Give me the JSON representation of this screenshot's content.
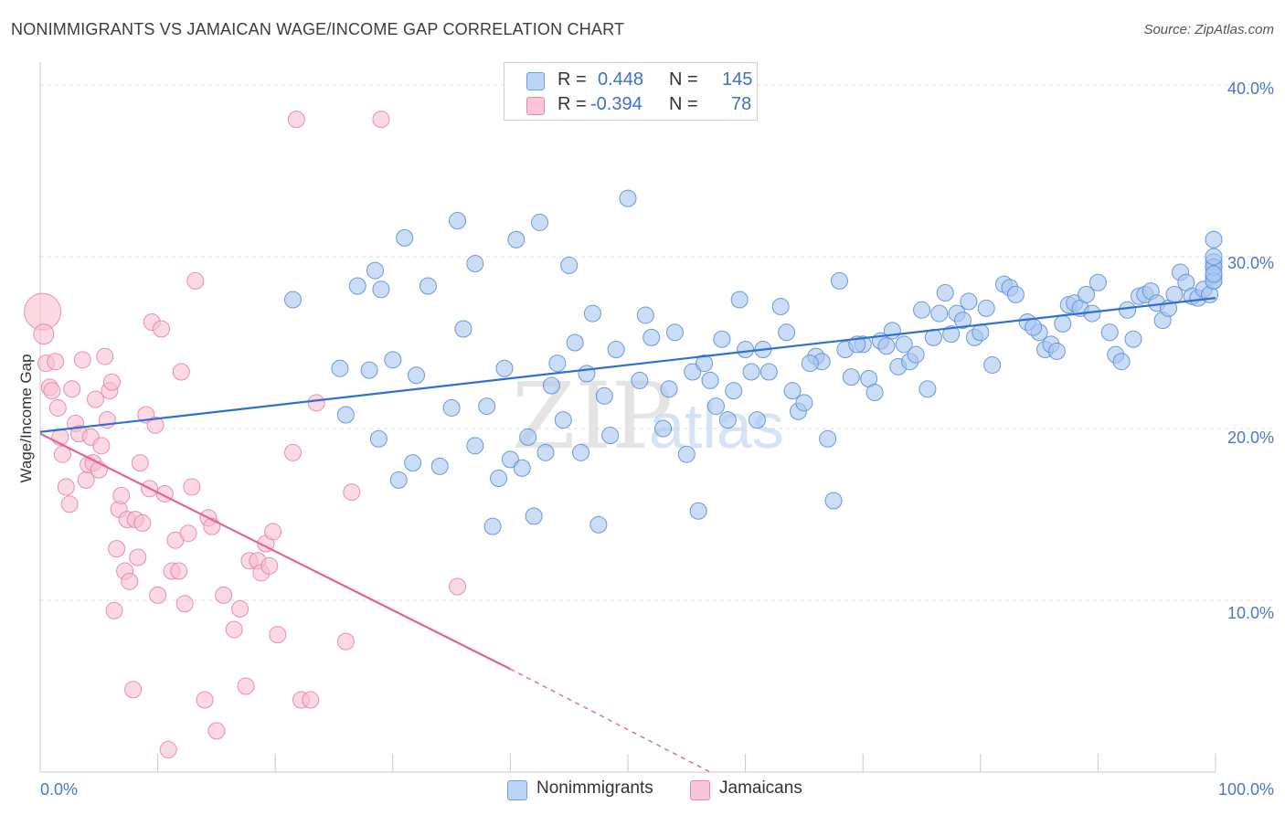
{
  "title": "NONIMMIGRANTS VS JAMAICAN WAGE/INCOME GAP CORRELATION CHART",
  "source": "Source: ZipAtlas.com",
  "watermark": {
    "zip": "ZIP",
    "atlas": "atlas"
  },
  "legend": {
    "r_label": "R =",
    "n_label": "N =",
    "rows": [
      {
        "series": "Nonimmigrants",
        "r": "0.448",
        "n": "145",
        "fill": "#bcd4f5",
        "stroke": "#6e9ee0"
      },
      {
        "series": "Jamaicans",
        "r": "-0.394",
        "n": "78",
        "fill": "#f9c6d6",
        "stroke": "#e98aa9"
      }
    ]
  },
  "colors": {
    "blue_fill": "#a9c6ef",
    "blue_stroke": "#5c8fd8",
    "blue_line": "#2f6fd0",
    "pink_fill": "#f6bfd0",
    "pink_stroke": "#e684a5",
    "pink_line": "#e2648f",
    "axis_text": "#4a78c8",
    "grid": "#dddddd"
  },
  "chart_data": {
    "type": "scatter",
    "title": "NONIMMIGRANTS VS JAMAICAN WAGE/INCOME GAP CORRELATION CHART",
    "xlabel": "",
    "ylabel": "Wage/Income Gap",
    "x_tick_labels": [
      "0.0%",
      "100.0%"
    ],
    "y_tick_labels": [
      "10.0%",
      "20.0%",
      "30.0%",
      "40.0%"
    ],
    "xlim": [
      0,
      100
    ],
    "ylim": [
      0,
      40.8
    ],
    "grid": true,
    "legend_position": "top-center",
    "series": [
      {
        "name": "Nonimmigrants",
        "r": 0.448,
        "n": 145,
        "trend": {
          "x": [
            0,
            100
          ],
          "y": [
            19.8,
            27.6
          ]
        },
        "points": [
          [
            21.5,
            27.5
          ],
          [
            25.5,
            23.5
          ],
          [
            26.0,
            20.8
          ],
          [
            27.0,
            28.3
          ],
          [
            28.0,
            23.4
          ],
          [
            28.5,
            29.2
          ],
          [
            29.0,
            28.1
          ],
          [
            30.0,
            24.0
          ],
          [
            31.0,
            31.1
          ],
          [
            32.0,
            23.1
          ],
          [
            28.8,
            19.4
          ],
          [
            30.5,
            17.0
          ],
          [
            31.7,
            18.0
          ],
          [
            33.0,
            28.3
          ],
          [
            34.0,
            17.8
          ],
          [
            35.0,
            21.2
          ],
          [
            35.5,
            32.1
          ],
          [
            36.0,
            25.8
          ],
          [
            37.0,
            29.6
          ],
          [
            38.0,
            21.3
          ],
          [
            38.5,
            14.3
          ],
          [
            39.0,
            17.1
          ],
          [
            39.5,
            23.5
          ],
          [
            40.0,
            18.2
          ],
          [
            40.5,
            31.0
          ],
          [
            41.0,
            17.7
          ],
          [
            41.5,
            19.5
          ],
          [
            42.0,
            14.9
          ],
          [
            42.5,
            32.0
          ],
          [
            43.5,
            22.5
          ],
          [
            44.0,
            23.8
          ],
          [
            44.5,
            20.5
          ],
          [
            45.0,
            29.5
          ],
          [
            45.5,
            25.0
          ],
          [
            46.0,
            18.6
          ],
          [
            46.5,
            23.2
          ],
          [
            47.0,
            26.7
          ],
          [
            47.5,
            14.4
          ],
          [
            48.0,
            21.9
          ],
          [
            48.5,
            19.6
          ],
          [
            49.0,
            24.6
          ],
          [
            50.0,
            33.4
          ],
          [
            51.0,
            22.8
          ],
          [
            51.5,
            26.6
          ],
          [
            52.0,
            25.3
          ],
          [
            53.5,
            22.3
          ],
          [
            54.0,
            25.6
          ],
          [
            55.0,
            18.5
          ],
          [
            55.5,
            23.3
          ],
          [
            56.0,
            15.2
          ],
          [
            56.5,
            23.8
          ],
          [
            57.0,
            22.8
          ],
          [
            57.5,
            21.3
          ],
          [
            58.0,
            25.2
          ],
          [
            58.5,
            20.5
          ],
          [
            59.5,
            27.5
          ],
          [
            60.0,
            24.6
          ],
          [
            60.5,
            23.3
          ],
          [
            61.0,
            20.5
          ],
          [
            61.5,
            24.6
          ],
          [
            62.0,
            23.3
          ],
          [
            63.0,
            27.1
          ],
          [
            63.5,
            25.6
          ],
          [
            64.0,
            22.2
          ],
          [
            64.5,
            21.0
          ],
          [
            65.0,
            21.5
          ],
          [
            66.0,
            24.2
          ],
          [
            66.5,
            23.9
          ],
          [
            67.0,
            19.4
          ],
          [
            67.5,
            15.8
          ],
          [
            68.0,
            28.6
          ],
          [
            68.5,
            24.6
          ],
          [
            69.0,
            23.0
          ],
          [
            70.0,
            24.9
          ],
          [
            70.5,
            22.9
          ],
          [
            71.0,
            22.1
          ],
          [
            71.5,
            25.1
          ],
          [
            72.0,
            24.8
          ],
          [
            72.5,
            25.7
          ],
          [
            73.0,
            23.6
          ],
          [
            73.5,
            24.9
          ],
          [
            74.0,
            23.9
          ],
          [
            74.5,
            24.3
          ],
          [
            75.0,
            26.9
          ],
          [
            75.5,
            22.3
          ],
          [
            76.0,
            25.3
          ],
          [
            77.0,
            27.9
          ],
          [
            77.5,
            25.5
          ],
          [
            78.0,
            26.7
          ],
          [
            78.5,
            26.3
          ],
          [
            79.0,
            27.4
          ],
          [
            79.5,
            25.3
          ],
          [
            80.0,
            25.6
          ],
          [
            81.0,
            23.7
          ],
          [
            82.0,
            28.4
          ],
          [
            82.5,
            28.2
          ],
          [
            83.0,
            27.8
          ],
          [
            84.0,
            26.2
          ],
          [
            85.0,
            25.6
          ],
          [
            85.5,
            24.6
          ],
          [
            86.0,
            24.9
          ],
          [
            86.5,
            24.5
          ],
          [
            87.0,
            26.1
          ],
          [
            87.5,
            27.2
          ],
          [
            88.0,
            27.3
          ],
          [
            88.5,
            27.0
          ],
          [
            89.0,
            27.8
          ],
          [
            89.5,
            26.7
          ],
          [
            90.0,
            28.5
          ],
          [
            91.0,
            25.6
          ],
          [
            91.5,
            24.3
          ],
          [
            92.0,
            23.9
          ],
          [
            92.5,
            26.9
          ],
          [
            93.0,
            25.2
          ],
          [
            93.5,
            27.7
          ],
          [
            94.0,
            27.8
          ],
          [
            94.5,
            28.0
          ],
          [
            95.0,
            27.3
          ],
          [
            95.5,
            26.3
          ],
          [
            96.0,
            27.0
          ],
          [
            96.5,
            27.8
          ],
          [
            97.0,
            29.1
          ],
          [
            97.5,
            28.5
          ],
          [
            98.0,
            27.7
          ],
          [
            98.5,
            27.6
          ],
          [
            99.0,
            28.1
          ],
          [
            99.5,
            27.8
          ],
          [
            100.0,
            28.9
          ],
          [
            100.5,
            29.4
          ],
          [
            101.0,
            28.6
          ],
          [
            101.5,
            29.7
          ],
          [
            102.0,
            28.6
          ],
          [
            102.5,
            29.4
          ],
          [
            103.0,
            30.0
          ],
          [
            103.5,
            29.0
          ],
          [
            104.0,
            31.0
          ],
          [
            37.0,
            19.0
          ],
          [
            43.0,
            18.6
          ],
          [
            53.0,
            20.0
          ],
          [
            59.0,
            22.2
          ],
          [
            65.5,
            23.8
          ],
          [
            69.5,
            24.9
          ],
          [
            76.5,
            26.7
          ],
          [
            80.5,
            27.0
          ],
          [
            84.5,
            25.9
          ]
        ]
      },
      {
        "name": "Jamaicans",
        "r": -0.394,
        "n": 78,
        "trend": {
          "x": [
            0,
            40
          ],
          "y": [
            19.7,
            6.0
          ]
        },
        "trend_dashed": {
          "x": [
            40,
            57
          ],
          "y": [
            6.0,
            0.0
          ]
        },
        "points": [
          [
            0.2,
            26.8
          ],
          [
            0.3,
            25.5
          ],
          [
            0.5,
            23.8
          ],
          [
            0.8,
            22.4
          ],
          [
            1.0,
            22.2
          ],
          [
            1.3,
            23.9
          ],
          [
            1.5,
            21.2
          ],
          [
            1.7,
            19.5
          ],
          [
            1.9,
            18.5
          ],
          [
            2.2,
            16.6
          ],
          [
            2.5,
            15.6
          ],
          [
            2.7,
            22.3
          ],
          [
            3.0,
            20.3
          ],
          [
            3.3,
            19.7
          ],
          [
            3.6,
            24.0
          ],
          [
            3.9,
            17.0
          ],
          [
            4.1,
            17.9
          ],
          [
            4.3,
            19.5
          ],
          [
            4.5,
            18.0
          ],
          [
            4.7,
            21.7
          ],
          [
            5.0,
            17.6
          ],
          [
            5.2,
            19.0
          ],
          [
            5.5,
            24.2
          ],
          [
            5.7,
            20.5
          ],
          [
            5.9,
            22.2
          ],
          [
            6.1,
            22.7
          ],
          [
            6.3,
            9.4
          ],
          [
            6.5,
            13.0
          ],
          [
            6.7,
            15.3
          ],
          [
            6.9,
            16.1
          ],
          [
            7.2,
            11.7
          ],
          [
            7.4,
            14.7
          ],
          [
            7.6,
            11.1
          ],
          [
            7.9,
            4.8
          ],
          [
            8.1,
            14.7
          ],
          [
            8.3,
            12.5
          ],
          [
            8.5,
            18.0
          ],
          [
            8.7,
            14.5
          ],
          [
            9.0,
            20.8
          ],
          [
            9.3,
            16.5
          ],
          [
            9.5,
            26.2
          ],
          [
            9.8,
            20.2
          ],
          [
            10.0,
            10.3
          ],
          [
            10.3,
            25.8
          ],
          [
            10.6,
            16.2
          ],
          [
            10.9,
            1.3
          ],
          [
            11.2,
            11.7
          ],
          [
            11.5,
            13.5
          ],
          [
            11.8,
            11.7
          ],
          [
            12.0,
            23.3
          ],
          [
            12.3,
            9.8
          ],
          [
            12.6,
            13.9
          ],
          [
            12.9,
            16.6
          ],
          [
            13.2,
            28.6
          ],
          [
            14.0,
            4.2
          ],
          [
            14.3,
            14.8
          ],
          [
            14.6,
            14.3
          ],
          [
            15.0,
            2.4
          ],
          [
            15.6,
            10.3
          ],
          [
            16.5,
            8.3
          ],
          [
            17.0,
            9.5
          ],
          [
            17.5,
            5.0
          ],
          [
            17.8,
            12.3
          ],
          [
            18.5,
            12.3
          ],
          [
            18.8,
            11.6
          ],
          [
            19.2,
            13.3
          ],
          [
            19.5,
            12.0
          ],
          [
            19.8,
            14.0
          ],
          [
            20.2,
            8.0
          ],
          [
            21.5,
            18.6
          ],
          [
            21.8,
            38.0
          ],
          [
            22.2,
            4.2
          ],
          [
            23.0,
            4.2
          ],
          [
            23.5,
            21.5
          ],
          [
            26.0,
            7.6
          ],
          [
            26.5,
            16.3
          ],
          [
            35.5,
            10.8
          ],
          [
            29.0,
            38.0
          ]
        ]
      }
    ]
  }
}
